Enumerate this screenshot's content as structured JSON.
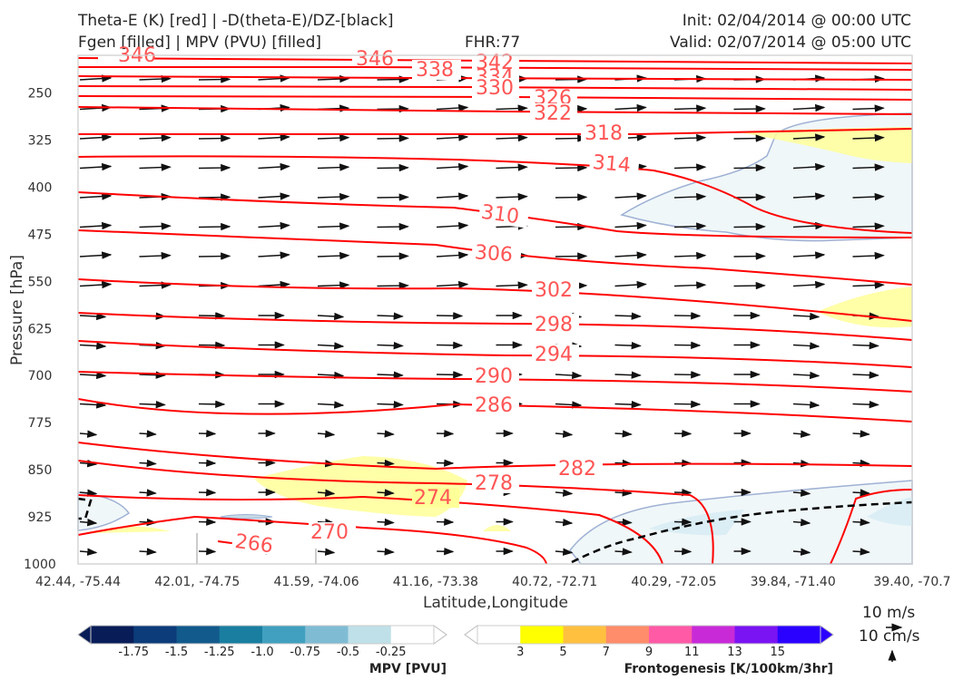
{
  "header": {
    "title_line1": "Theta-E (K) [red] | -D(theta-E)/DZ-[black]",
    "title_line2": "Fgen [filled] | MPV (PVU) [filled]",
    "fhr": "FHR:77",
    "init": "Init: 02/04/2014 @ 00:00 UTC",
    "valid": "Valid: 02/07/2014 @ 05:00 UTC"
  },
  "chart_data": {
    "type": "cross-section",
    "xlabel": "Latitude,Longitude",
    "ylabel": "Pressure [hPa]",
    "x_ticks": [
      "42.44, -75.44",
      "42.01, -74.75",
      "41.59, -74.06",
      "41.16, -73.38",
      "40.72, -72.71",
      "40.29, -72.05",
      "39.84, -71.40",
      "39.40, -70.7"
    ],
    "y_ticks": [
      250,
      325,
      400,
      475,
      550,
      625,
      700,
      775,
      850,
      925,
      1000
    ],
    "ylim": [
      190,
      1000
    ],
    "grid": false,
    "theta_e_contours": {
      "color": "#ff0000",
      "levels": [
        346,
        342,
        338,
        334,
        330,
        326,
        322,
        318,
        314,
        310,
        306,
        302,
        298,
        294,
        290,
        286,
        282,
        278,
        274,
        270,
        266
      ]
    },
    "wind_reference": {
      "u_label": "10 m/s",
      "w_label": "10 cm/s"
    },
    "colorbars": [
      {
        "title": "MPV [PVU]",
        "ticks": [
          "-1.75",
          "-1.5",
          "-1.25",
          "-1.0",
          "-0.75",
          "-0.5",
          "-0.25"
        ],
        "colors": [
          "#081d58",
          "#0c3c7a",
          "#125a8c",
          "#1a7ea0",
          "#41a0c0",
          "#7fbcd4",
          "#bfe0e8",
          "#ffffff"
        ]
      },
      {
        "title": "Frontogenesis [K/100km/3hr]",
        "ticks": [
          "3",
          "5",
          "7",
          "9",
          "11",
          "13",
          "15"
        ],
        "colors": [
          "#ffffff",
          "#ffff00",
          "#ffc040",
          "#ff8c6a",
          "#ff5aa6",
          "#c82ad8",
          "#7a14f2",
          "#2a00ff"
        ]
      }
    ]
  }
}
